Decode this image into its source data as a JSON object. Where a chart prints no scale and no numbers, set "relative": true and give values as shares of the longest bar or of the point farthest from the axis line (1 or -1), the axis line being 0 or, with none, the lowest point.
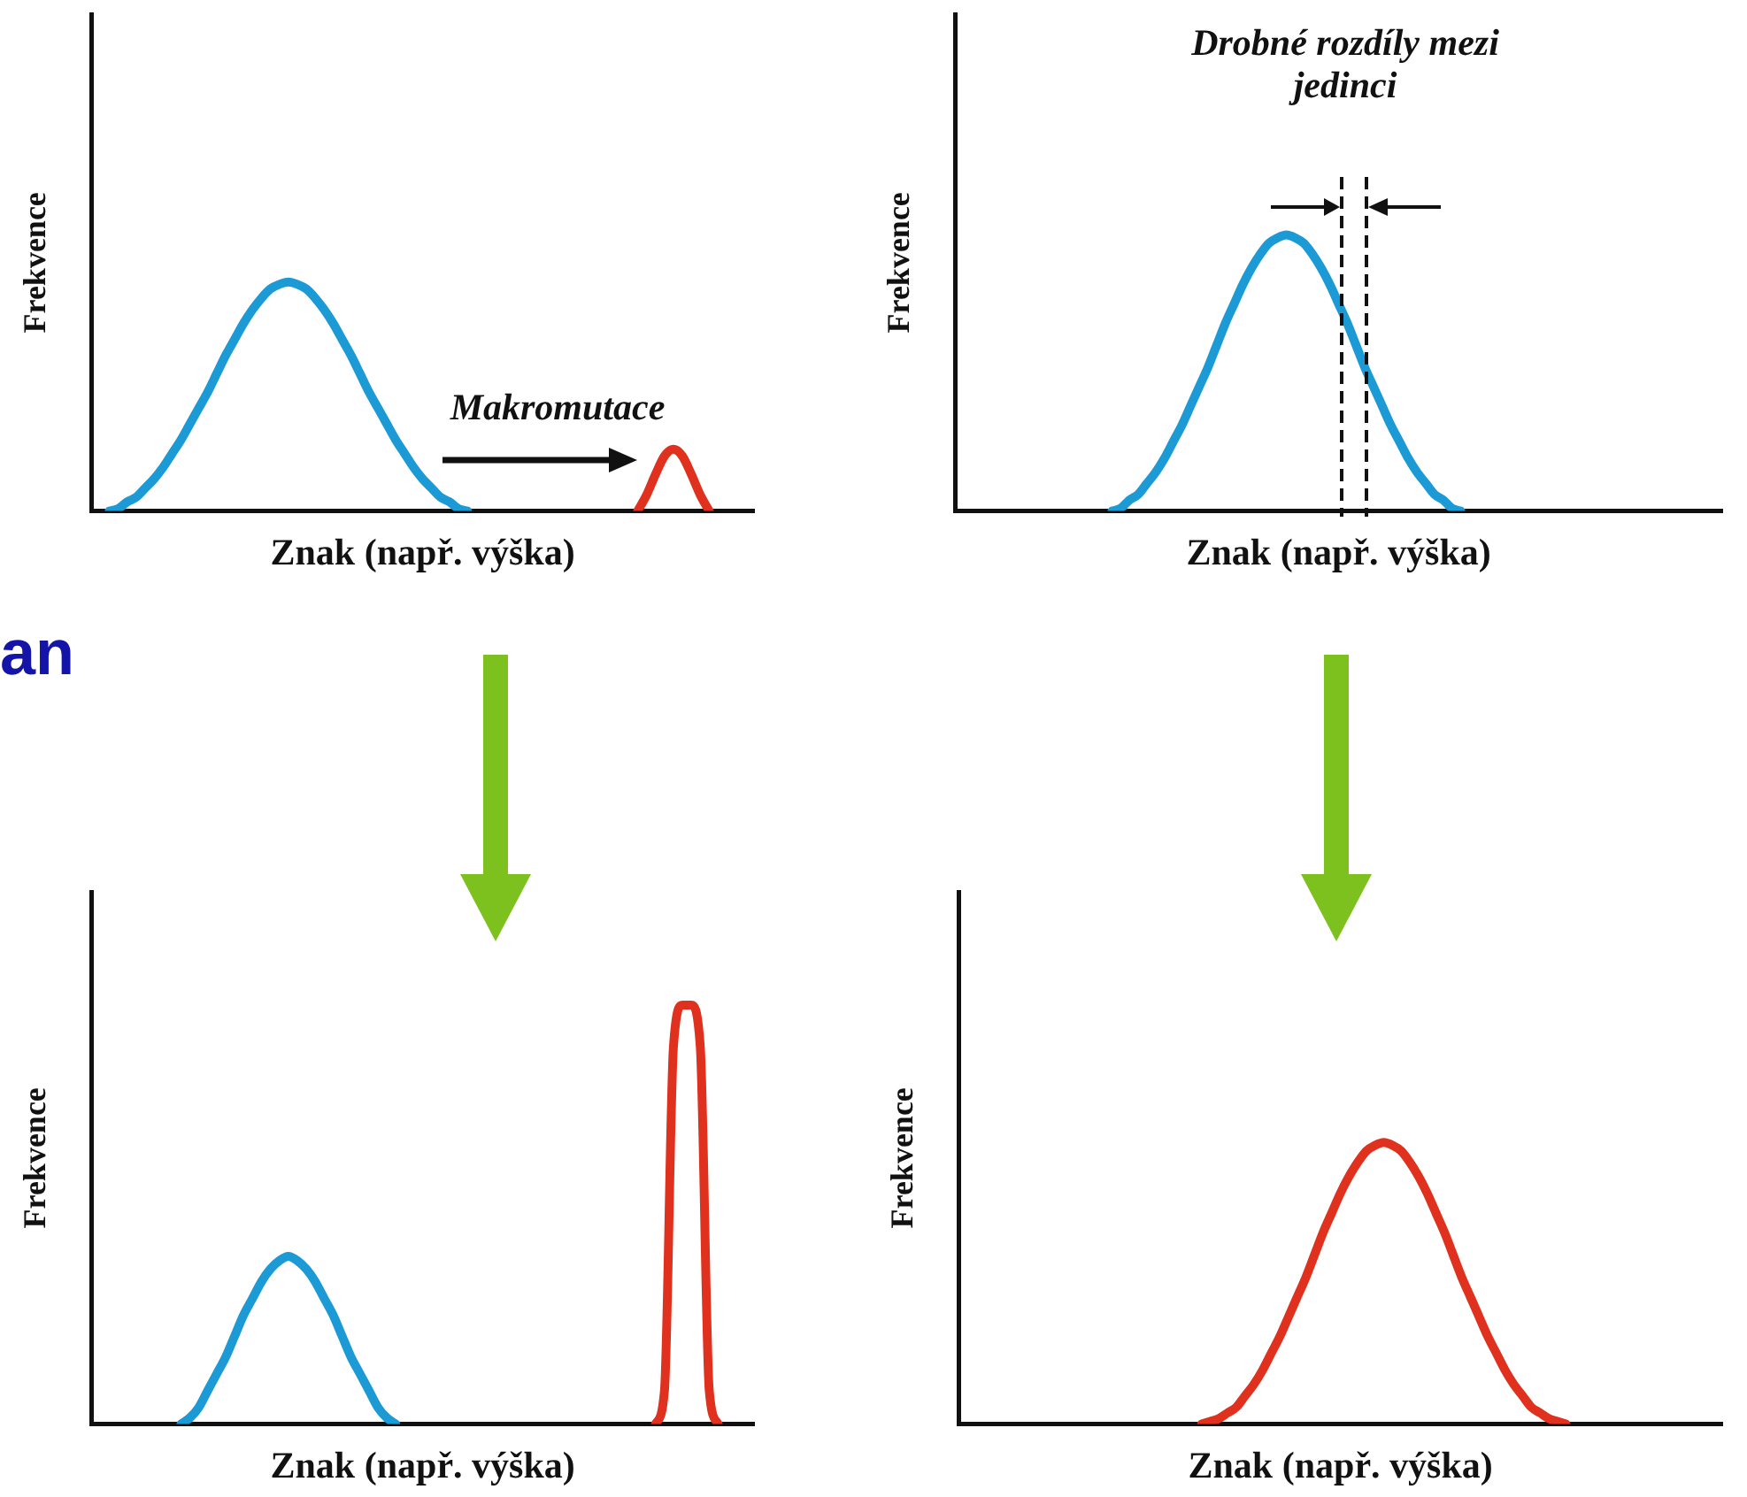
{
  "chart_data": [
    {
      "type": "line",
      "relative": true,
      "xlabel": "Znak (např. výška)",
      "ylabel": "Frekvence",
      "annotations": [
        "Makromutace",
        "an"
      ],
      "categories": [
        null,
        null,
        null,
        null,
        null,
        null,
        null,
        null,
        null,
        null,
        null,
        null,
        null,
        null,
        null,
        null,
        null,
        null,
        null,
        null,
        null,
        null,
        null,
        null,
        null,
        null,
        null,
        null,
        null,
        null,
        null,
        null,
        null,
        null,
        null,
        null,
        null,
        null,
        null,
        null,
        null,
        null,
        null,
        null,
        null,
        null,
        null,
        null,
        null,
        null,
        null,
        null,
        null,
        null,
        null,
        null,
        null,
        null,
        null,
        null,
        null,
        null,
        null,
        null,
        null,
        null,
        null,
        null,
        null,
        null,
        null,
        null,
        null,
        null,
        null
      ],
      "series": [
        {
          "color": "#1b9ad6",
          "values": [
            null,
            null,
            0,
            0.01,
            0.04,
            0.06,
            0.1,
            0.14,
            0.19,
            0.25,
            0.31,
            0.38,
            0.45,
            0.52,
            0.6,
            0.68,
            0.75,
            0.82,
            0.88,
            0.93,
            0.97,
            0.99,
            1,
            0.99,
            0.97,
            0.93,
            0.88,
            0.82,
            0.75,
            0.68,
            0.6,
            0.52,
            0.45,
            0.38,
            0.31,
            0.25,
            0.19,
            0.14,
            0.1,
            0.06,
            0.04,
            0.01,
            0,
            null,
            null,
            null,
            null,
            null,
            null,
            null,
            null,
            null,
            null,
            null,
            null,
            null,
            null,
            null,
            null,
            null,
            null,
            null,
            null,
            null,
            null,
            null,
            null,
            null,
            null,
            null,
            null,
            null,
            null,
            null,
            null
          ]
        },
        {
          "color": "#e0301e",
          "values": [
            null,
            null,
            null,
            null,
            null,
            null,
            null,
            null,
            null,
            null,
            null,
            null,
            null,
            null,
            null,
            null,
            null,
            null,
            null,
            null,
            null,
            null,
            null,
            null,
            null,
            null,
            null,
            null,
            null,
            null,
            null,
            null,
            null,
            null,
            null,
            null,
            null,
            null,
            null,
            null,
            null,
            null,
            null,
            null,
            null,
            null,
            null,
            null,
            null,
            null,
            null,
            null,
            null,
            null,
            null,
            null,
            null,
            null,
            null,
            null,
            null,
            0,
            0.07,
            0.16,
            0.24,
            0.27,
            0.24,
            0.16,
            0.07,
            0,
            null,
            null,
            null,
            null,
            null
          ]
        }
      ]
    },
    {
      "type": "line",
      "relative": true,
      "xlabel": "Znak (např. výška)",
      "ylabel": "Frekvence",
      "annotations": [
        "Drobné rozdíly mezi jedinci"
      ],
      "categories": [
        null,
        null,
        null,
        null,
        null,
        null,
        null,
        null,
        null,
        null,
        null,
        null,
        null,
        null,
        null,
        null,
        null,
        null,
        null,
        null,
        null,
        null,
        null,
        null,
        null,
        null,
        null,
        null,
        null,
        null,
        null,
        null,
        null,
        null,
        null,
        null,
        null,
        null,
        null,
        null,
        null,
        null,
        null,
        null,
        null,
        null,
        null,
        null,
        null,
        null,
        null,
        null,
        null,
        null,
        null,
        null,
        null,
        null,
        null,
        null,
        null,
        null,
        null,
        null,
        null,
        null,
        null,
        null,
        null,
        null,
        null,
        null,
        null,
        null,
        null,
        null,
        null,
        null,
        null,
        null,
        null,
        null,
        null,
        null,
        null,
        null,
        null,
        null,
        null
      ],
      "series": [
        {
          "color": "#1b9ad6",
          "values": [
            null,
            null,
            null,
            null,
            null,
            null,
            null,
            null,
            null,
            null,
            null,
            null,
            null,
            null,
            null,
            null,
            null,
            null,
            0,
            0.01,
            0.04,
            0.06,
            0.1,
            0.14,
            0.19,
            0.25,
            0.31,
            0.38,
            0.45,
            0.52,
            0.6,
            0.68,
            0.75,
            0.82,
            0.88,
            0.93,
            0.97,
            0.99,
            1,
            0.99,
            0.97,
            0.93,
            0.88,
            0.82,
            0.75,
            0.68,
            0.6,
            0.52,
            0.45,
            0.38,
            0.31,
            0.25,
            0.19,
            0.14,
            0.1,
            0.06,
            0.04,
            0.01,
            0,
            null,
            null,
            null,
            null,
            null,
            null,
            null,
            null,
            null,
            null,
            null,
            null,
            null,
            null,
            null,
            null,
            null,
            null,
            null,
            null,
            null,
            null,
            null,
            null,
            null,
            null,
            null,
            null,
            null,
            null
          ]
        }
      ]
    },
    {
      "type": "line",
      "relative": true,
      "xlabel": "Znak (např. výška)",
      "ylabel": "Frekvence",
      "categories": [
        null,
        null,
        null,
        null,
        null,
        null,
        null,
        null,
        null,
        null,
        null,
        null,
        null,
        null,
        null,
        null,
        null,
        null,
        null,
        null,
        null,
        null,
        null,
        null,
        null,
        null,
        null,
        null,
        null,
        null,
        null,
        null,
        null,
        null,
        null,
        null,
        null,
        null,
        null,
        null,
        null,
        null,
        null,
        null,
        null,
        null,
        null,
        null,
        null,
        null,
        null,
        null,
        null,
        null,
        null,
        null,
        null,
        null,
        null,
        null,
        null,
        null,
        null,
        null,
        null,
        null,
        null,
        null,
        null,
        null,
        null,
        null,
        null,
        null,
        null
      ],
      "series": [
        {
          "color": "#1b9ad6",
          "values": [
            null,
            null,
            null,
            null,
            null,
            null,
            null,
            null,
            null,
            null,
            0,
            0.015,
            0.04,
            0.08,
            0.12,
            0.16,
            0.21,
            0.26,
            0.3,
            0.34,
            0.37,
            0.39,
            0.4,
            0.39,
            0.37,
            0.34,
            0.3,
            0.26,
            0.21,
            0.16,
            0.12,
            0.08,
            0.04,
            0.015,
            0,
            null,
            null,
            null,
            null,
            null,
            null,
            null,
            null,
            null,
            null,
            null,
            null,
            null,
            null,
            null,
            null,
            null,
            null,
            null,
            null,
            null,
            null,
            null,
            null,
            null,
            null,
            null,
            null,
            null,
            null,
            null,
            null,
            null,
            null,
            null,
            null,
            null,
            null,
            null,
            null
          ]
        },
        {
          "color": "#e0301e",
          "values": [
            null,
            null,
            null,
            null,
            null,
            null,
            null,
            null,
            null,
            null,
            null,
            null,
            null,
            null,
            null,
            null,
            null,
            null,
            null,
            null,
            null,
            null,
            null,
            null,
            null,
            null,
            null,
            null,
            null,
            null,
            null,
            null,
            null,
            null,
            null,
            null,
            null,
            null,
            null,
            null,
            null,
            null,
            null,
            null,
            null,
            null,
            null,
            null,
            null,
            null,
            null,
            null,
            null,
            null,
            null,
            null,
            null,
            null,
            null,
            null,
            null,
            null,
            null,
            0,
            0.08,
            0.9,
            1,
            1,
            0.9,
            0.08,
            0,
            null,
            null,
            null,
            null
          ]
        }
      ]
    },
    {
      "type": "line",
      "relative": true,
      "xlabel": "Znak (např. výška)",
      "ylabel": "Frekvence",
      "categories": [
        null,
        null,
        null,
        null,
        null,
        null,
        null,
        null,
        null,
        null,
        null,
        null,
        null,
        null,
        null,
        null,
        null,
        null,
        null,
        null,
        null,
        null,
        null,
        null,
        null,
        null,
        null,
        null,
        null,
        null,
        null,
        null,
        null,
        null,
        null,
        null,
        null,
        null,
        null,
        null,
        null,
        null,
        null,
        null,
        null,
        null,
        null,
        null,
        null,
        null,
        null,
        null,
        null,
        null,
        null,
        null,
        null,
        null,
        null,
        null,
        null,
        null,
        null,
        null,
        null,
        null,
        null,
        null,
        null,
        null,
        null,
        null,
        null,
        null,
        null,
        null,
        null,
        null,
        null,
        null,
        null,
        null,
        null,
        null,
        null,
        null,
        null,
        null,
        null
      ],
      "series": [
        {
          "color": "#e0301e",
          "values": [
            null,
            null,
            null,
            null,
            null,
            null,
            null,
            null,
            null,
            null,
            null,
            null,
            null,
            null,
            null,
            null,
            null,
            null,
            null,
            null,
            null,
            null,
            null,
            null,
            null,
            null,
            null,
            null,
            0,
            0.01,
            0.02,
            0.04,
            0.06,
            0.1,
            0.14,
            0.19,
            0.25,
            0.31,
            0.38,
            0.45,
            0.52,
            0.6,
            0.68,
            0.75,
            0.82,
            0.88,
            0.93,
            0.97,
            0.99,
            1,
            0.99,
            0.97,
            0.93,
            0.88,
            0.82,
            0.75,
            0.68,
            0.6,
            0.52,
            0.45,
            0.38,
            0.31,
            0.25,
            0.19,
            0.14,
            0.1,
            0.06,
            0.04,
            0.02,
            0.01,
            0,
            null,
            null,
            null,
            null,
            null,
            null,
            null,
            null,
            null,
            null,
            null,
            null,
            null,
            null,
            null,
            null,
            null,
            null
          ]
        }
      ]
    }
  ]
}
